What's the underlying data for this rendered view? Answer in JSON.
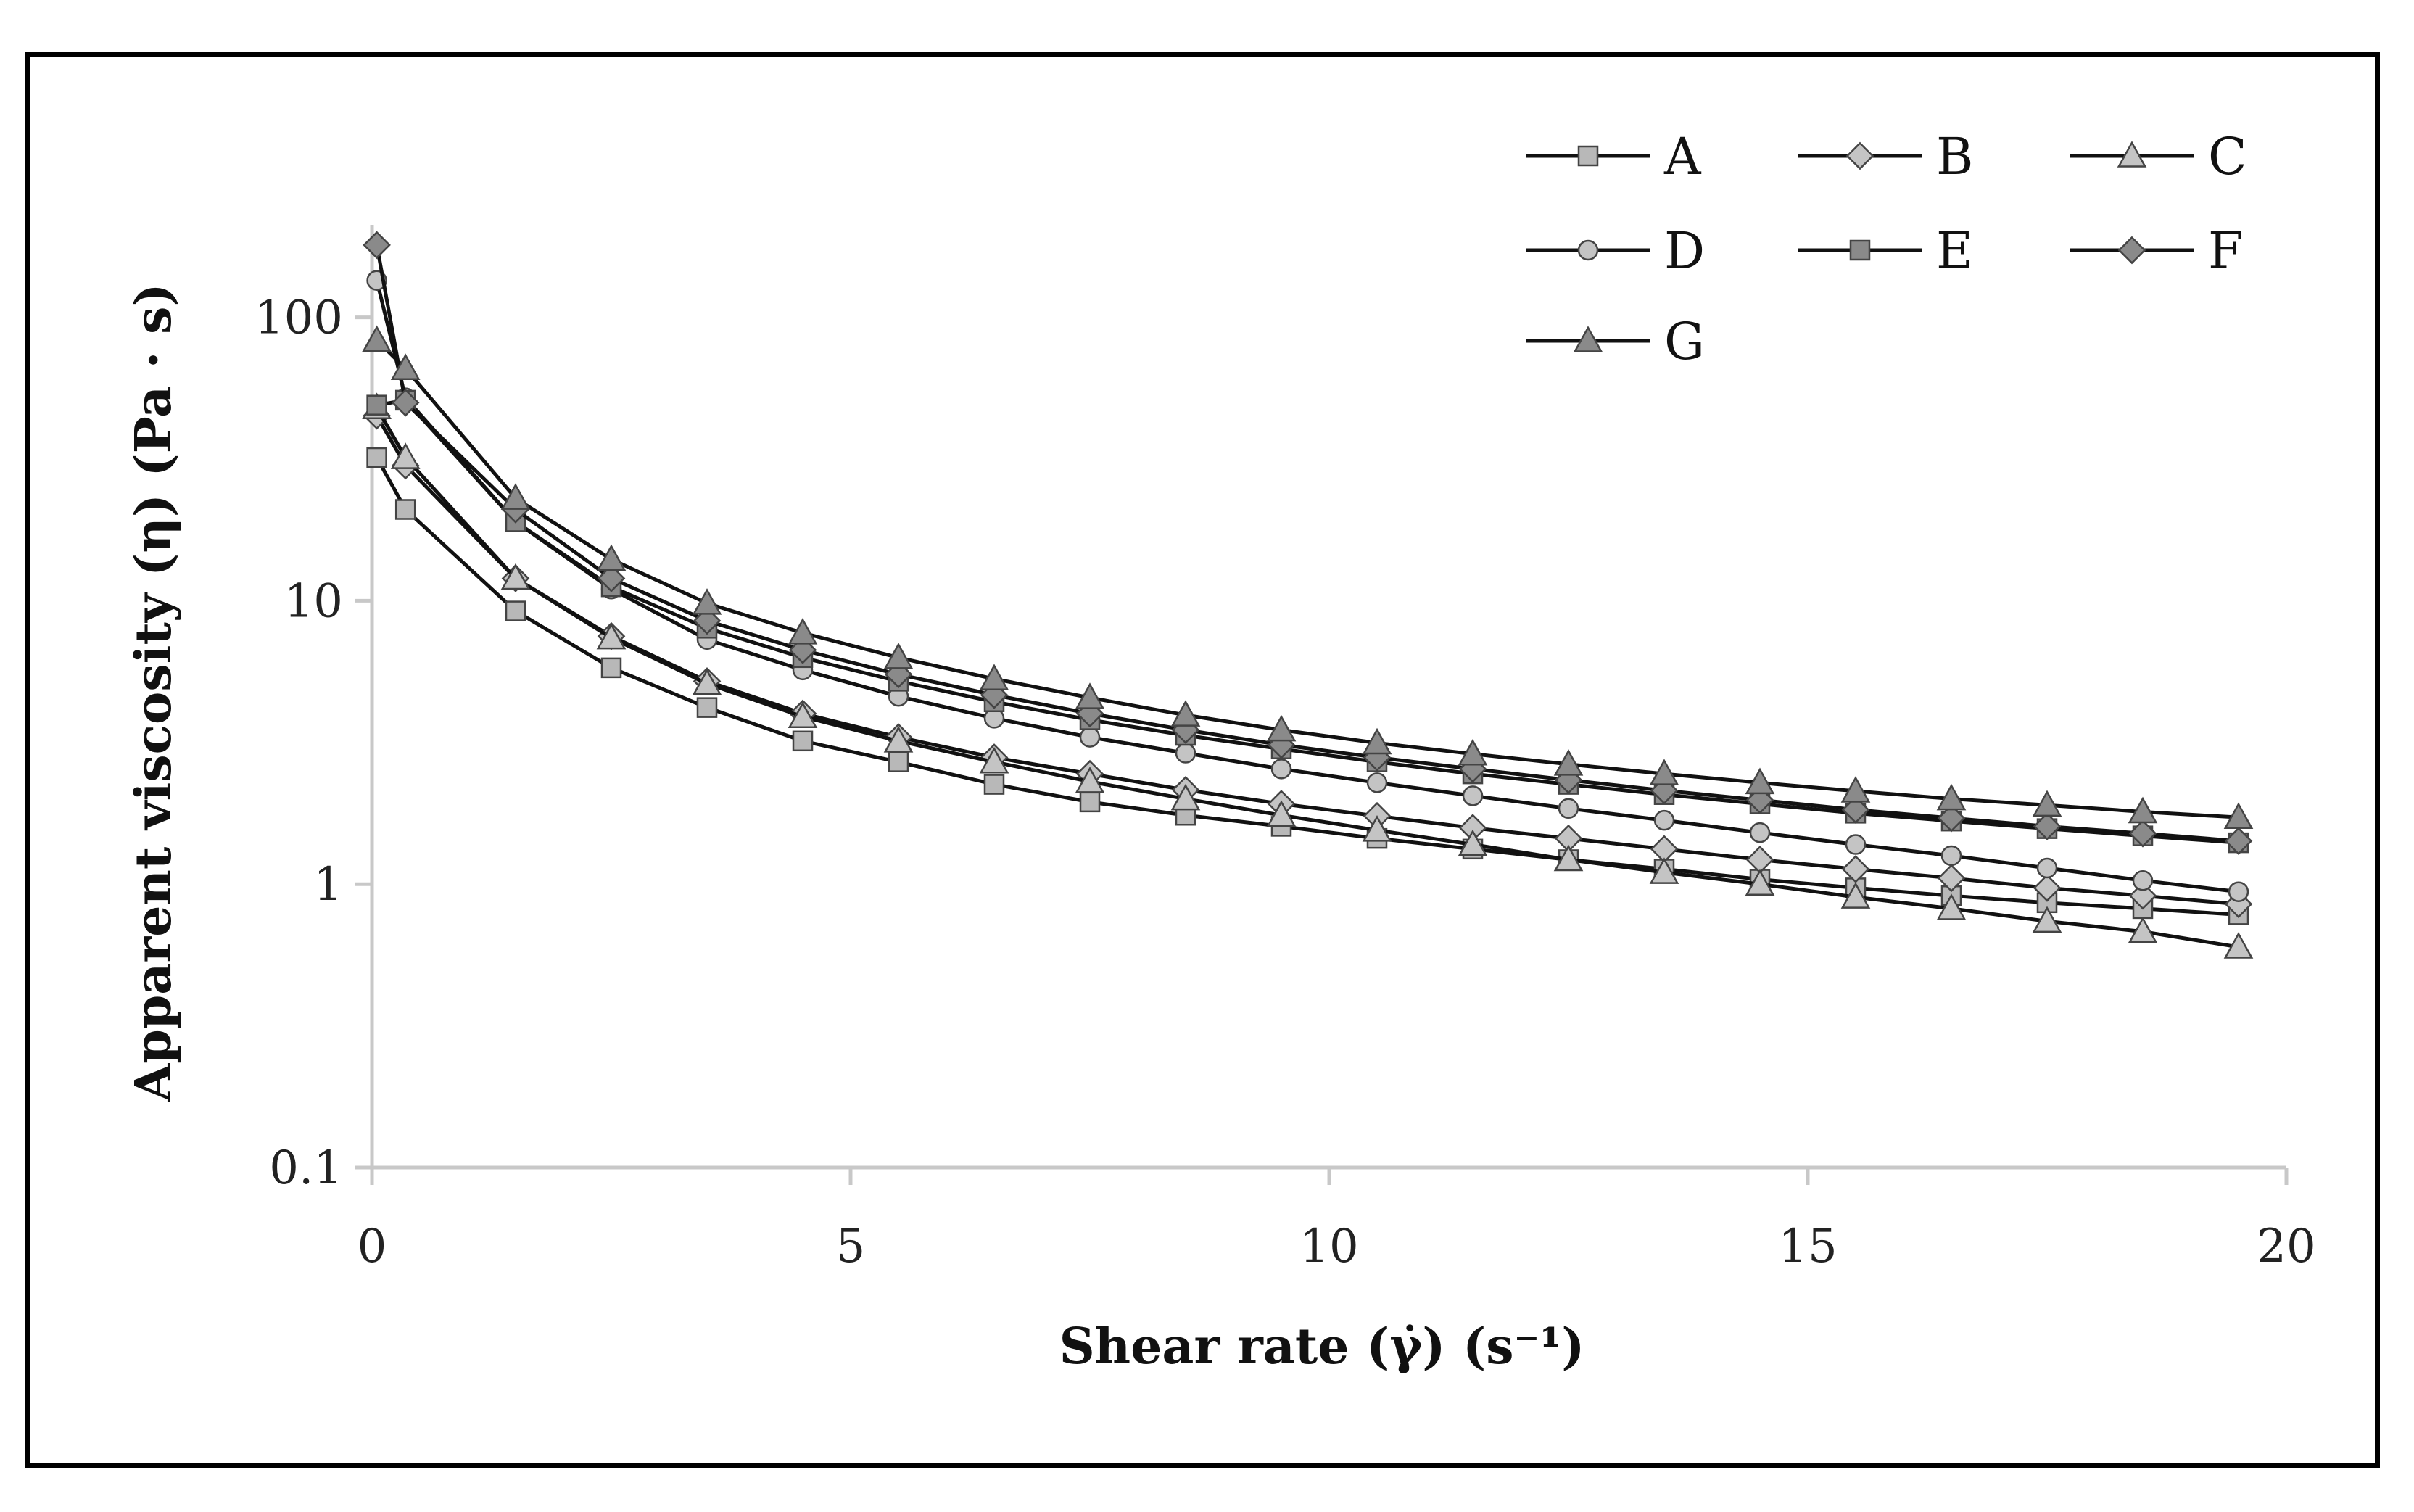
{
  "chart_data": {
    "type": "line",
    "title": "",
    "xlabel": "Shear rate (γ̇) (s⁻¹)",
    "ylabel": "Apparent viscosity (η) (Pa · s)",
    "xlim": [
      0,
      20
    ],
    "ylim": [
      0.1,
      200
    ],
    "yscale": "log",
    "xticks": [
      "0",
      "5",
      "10",
      "15",
      "20"
    ],
    "yticks": [
      "0.1",
      "1",
      "10",
      "100"
    ],
    "grid": false,
    "legend_position": "top-right",
    "x": [
      0.05,
      0.35,
      1.5,
      2.5,
      3.5,
      4.5,
      5.5,
      6.5,
      7.5,
      8.5,
      9.5,
      10.5,
      11.5,
      12.5,
      13.5,
      14.5,
      15.5,
      16.5,
      17.5,
      18.5,
      19.5
    ],
    "series": [
      {
        "name": "A",
        "marker": "square",
        "color": "#b8b8b8",
        "values": [
          32,
          21,
          9.2,
          5.8,
          4.2,
          3.2,
          2.7,
          2.25,
          1.95,
          1.75,
          1.6,
          1.45,
          1.33,
          1.22,
          1.13,
          1.04,
          0.97,
          0.91,
          0.86,
          0.82,
          0.78
        ]
      },
      {
        "name": "B",
        "marker": "diamond",
        "color": "#c4c4c4",
        "values": [
          45,
          30,
          12,
          7.5,
          5.2,
          4.0,
          3.3,
          2.8,
          2.45,
          2.15,
          1.92,
          1.74,
          1.58,
          1.45,
          1.33,
          1.22,
          1.13,
          1.05,
          0.97,
          0.91,
          0.85
        ]
      },
      {
        "name": "C",
        "marker": "triangle",
        "color": "#c4c4c4",
        "values": [
          48,
          32,
          12,
          7.4,
          5.1,
          3.9,
          3.2,
          2.7,
          2.3,
          2.0,
          1.75,
          1.55,
          1.38,
          1.22,
          1.1,
          1.0,
          0.9,
          0.82,
          0.74,
          0.68,
          0.6
        ]
      },
      {
        "name": "D",
        "marker": "circle",
        "color": "#c4c4c4",
        "values": [
          135,
          52,
          19,
          11,
          7.3,
          5.7,
          4.6,
          3.85,
          3.3,
          2.9,
          2.55,
          2.28,
          2.05,
          1.85,
          1.68,
          1.52,
          1.38,
          1.26,
          1.14,
          1.03,
          0.94
        ]
      },
      {
        "name": "E",
        "marker": "square",
        "color": "#8a8a8a",
        "values": [
          49,
          51,
          19,
          11.2,
          8.0,
          6.3,
          5.2,
          4.4,
          3.8,
          3.35,
          3.0,
          2.7,
          2.45,
          2.25,
          2.07,
          1.92,
          1.78,
          1.67,
          1.57,
          1.48,
          1.4
        ]
      },
      {
        "name": "F",
        "marker": "diamond",
        "color": "#8a8a8a",
        "values": [
          180,
          50,
          21,
          12,
          8.5,
          6.7,
          5.5,
          4.65,
          4.0,
          3.5,
          3.1,
          2.8,
          2.55,
          2.33,
          2.14,
          1.98,
          1.83,
          1.71,
          1.6,
          1.51,
          1.42
        ]
      },
      {
        "name": "G",
        "marker": "triangle",
        "color": "#8a8a8a",
        "values": [
          83,
          66,
          23,
          14,
          9.8,
          7.7,
          6.3,
          5.3,
          4.55,
          3.95,
          3.5,
          3.15,
          2.88,
          2.65,
          2.45,
          2.28,
          2.13,
          2.0,
          1.9,
          1.8,
          1.72
        ]
      }
    ]
  }
}
